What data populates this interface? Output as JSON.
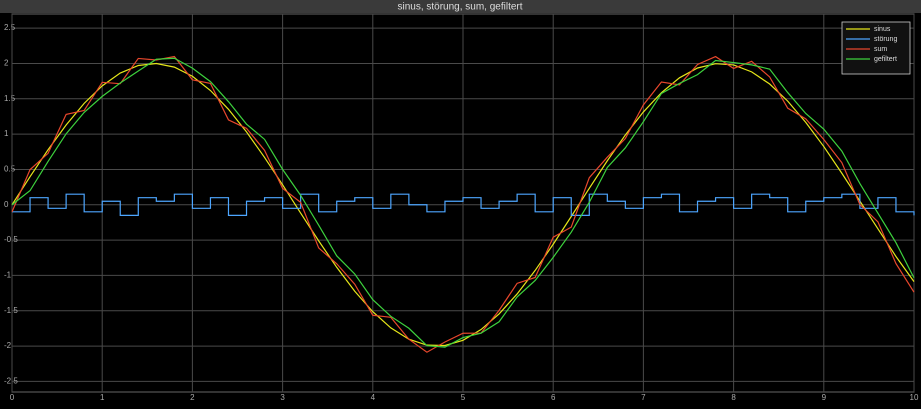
{
  "chart_data": {
    "type": "line",
    "title": "sinus, störung, sum, gefiltert",
    "x": [
      0,
      0.2,
      0.4,
      0.6,
      0.8,
      1,
      1.2,
      1.4,
      1.6,
      1.8,
      2,
      2.2,
      2.4,
      2.6,
      2.8,
      3,
      3.2,
      3.4,
      3.6,
      3.8,
      4,
      4.2,
      4.4,
      4.6,
      4.8,
      5,
      5.2,
      5.4,
      5.6,
      5.8,
      6,
      6.2,
      6.4,
      6.6,
      6.8,
      7,
      7.2,
      7.4,
      7.6,
      7.8,
      8,
      8.2,
      8.4,
      8.6,
      8.8,
      9,
      9.2,
      9.4,
      9.6,
      9.8,
      10
    ],
    "series": [
      {
        "name": "sinus",
        "color": "#e6e619",
        "values": [
          0,
          0.397,
          0.779,
          1.129,
          1.435,
          1.683,
          1.864,
          1.971,
          1.999,
          1.948,
          1.819,
          1.617,
          1.351,
          1.031,
          0.67,
          0.282,
          -0.117,
          -0.511,
          -0.885,
          -1.224,
          -1.514,
          -1.743,
          -1.903,
          -1.987,
          -1.992,
          -1.918,
          -1.766,
          -1.545,
          -1.262,
          -0.929,
          -0.559,
          -0.166,
          0.233,
          0.623,
          0.988,
          1.314,
          1.587,
          1.797,
          1.936,
          1.997,
          1.979,
          1.881,
          1.709,
          1.467,
          1.166,
          0.824,
          0.446,
          0.053,
          -0.341,
          -0.732,
          -1.088
        ]
      },
      {
        "name": "störung",
        "color": "#4da6ff",
        "step": true,
        "values": [
          -0.1,
          0.1,
          -0.05,
          0.15,
          -0.1,
          0.05,
          -0.15,
          0.1,
          0.05,
          0.15,
          -0.05,
          0.1,
          -0.15,
          0.05,
          0.1,
          -0.05,
          0.15,
          -0.1,
          0.05,
          0.1,
          -0.05,
          0.15,
          0,
          -0.1,
          0.05,
          0.1,
          -0.05,
          0.05,
          0.15,
          -0.1,
          0.1,
          -0.15,
          0.15,
          0.05,
          -0.05,
          0.1,
          0.15,
          -0.1,
          0.05,
          0.1,
          -0.05,
          0.15,
          0.1,
          -0.1,
          0.05,
          0.1,
          0.15,
          -0.05,
          0.1,
          -0.1,
          -0.15
        ]
      },
      {
        "name": "sum",
        "color": "#e8472c",
        "values": [
          -0.1,
          0.497,
          0.729,
          1.279,
          1.335,
          1.733,
          1.714,
          2.071,
          2.049,
          2.098,
          1.769,
          1.717,
          1.201,
          1.081,
          0.77,
          0.232,
          0.033,
          -0.611,
          -0.835,
          -1.124,
          -1.564,
          -1.593,
          -1.903,
          -2.087,
          -1.942,
          -1.818,
          -1.816,
          -1.495,
          -1.112,
          -1.029,
          -0.459,
          -0.316,
          0.383,
          0.673,
          0.938,
          1.414,
          1.737,
          1.697,
          1.986,
          2.097,
          1.929,
          2.031,
          1.809,
          1.367,
          1.216,
          0.924,
          0.596,
          0.003,
          -0.241,
          -0.832,
          -1.238
        ]
      },
      {
        "name": "gefiltert",
        "color": "#3dd13d",
        "values": [
          0,
          0.2,
          0.613,
          1.004,
          1.307,
          1.534,
          1.724,
          1.893,
          2.06,
          2.074,
          1.934,
          1.743,
          1.459,
          1.141,
          0.926,
          0.501,
          0.133,
          -0.289,
          -0.723,
          -0.98,
          -1.344,
          -1.579,
          -1.748,
          -1.995,
          -2.015,
          -1.88,
          -1.817,
          -1.656,
          -1.304,
          -1.071,
          -0.744,
          -0.388,
          0.034,
          0.528,
          0.806,
          1.176,
          1.576,
          1.717,
          1.842,
          2.042,
          2.013,
          1.98,
          1.92,
          1.588,
          1.292,
          1.07,
          0.76,
          0.3,
          -0.119,
          -0.537,
          -1.035
        ]
      }
    ],
    "xlim": [
      0,
      10
    ],
    "xticks": [
      0,
      1,
      2,
      3,
      4,
      5,
      6,
      7,
      8,
      9,
      10
    ],
    "ylim": [
      -2.65,
      2.7
    ],
    "yticks": [
      -2.5,
      -2,
      -1.5,
      -1,
      -0.5,
      0,
      0.5,
      1,
      1.5,
      2,
      2.5
    ],
    "grid": true,
    "legend": "upper right"
  }
}
